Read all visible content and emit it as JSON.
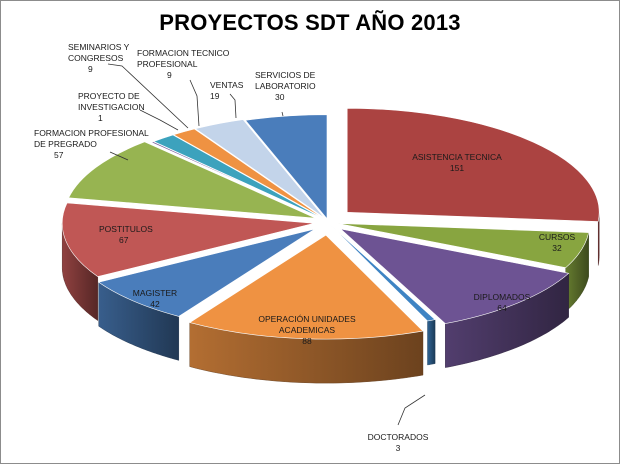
{
  "chart_data": {
    "type": "pie",
    "style": "3d-exploded",
    "title": "PROYECTOS SDT AÑO 2013",
    "categories": [
      "ASISTENCIA TECNICA",
      "CURSOS",
      "DIPLOMADOS",
      "DOCTORADOS",
      "OPERACIÓN UNIDADES ACADEMICAS",
      "MAGISTER",
      "POSTITULOS",
      "FORMACION PROFESIONAL DE PREGRADO",
      "PROYECTO DE INVESTIGACION",
      "SEMINARIOS Y CONGRESOS",
      "FORMACION TECNICO PROFESIONAL",
      "VENTAS",
      "SERVICIOS DE LABORATORIO"
    ],
    "values": [
      151,
      32,
      64,
      3,
      88,
      42,
      67,
      57,
      1,
      9,
      9,
      19,
      30
    ],
    "colors": [
      "#ab4341",
      "#88a540",
      "#6d5393",
      "#3e84c4",
      "#ef9242",
      "#4a7dbb",
      "#c05755",
      "#97b451",
      "#7a5e9e",
      "#3ca2bd",
      "#ef9242",
      "#c3d4ea",
      "#4a7dbb"
    ],
    "legend": "none"
  }
}
